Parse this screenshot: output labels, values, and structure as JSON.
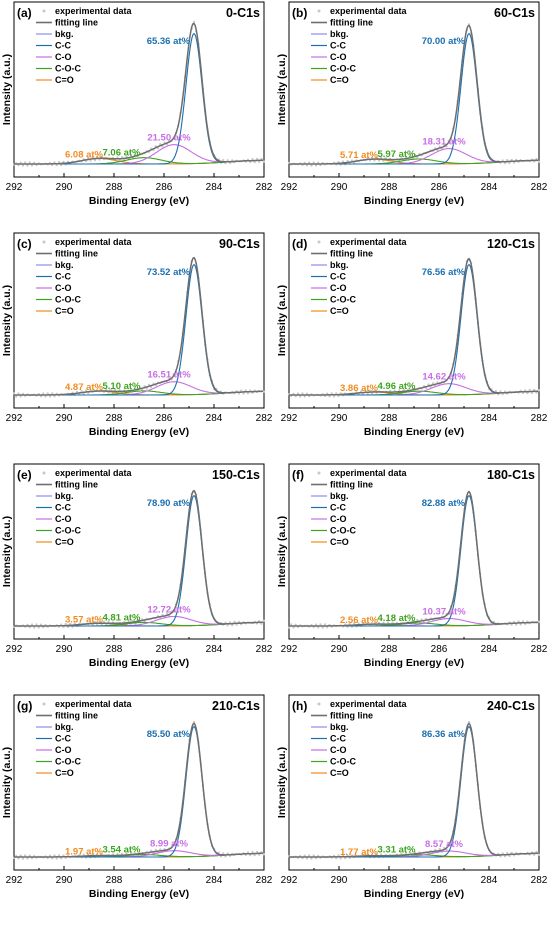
{
  "chart_data": [
    {
      "panel_label": "(a)",
      "title": "0-C1s",
      "type": "line",
      "xlabel": "Binding Energy (eV)",
      "ylabel": "Intensity (a.u.)",
      "xlim": [
        292,
        282
      ],
      "xticks": [
        "292",
        "290",
        "288",
        "286",
        "284",
        "282"
      ],
      "legend": [
        "experimental data",
        "fitting line",
        "bkg.",
        "C-C",
        "C-O",
        "C-O-C",
        "C=O"
      ],
      "peaks": [
        {
          "name": "C-C",
          "position": 284.8,
          "fraction": 65.36,
          "label": "65.36 at%"
        },
        {
          "name": "C-O",
          "position": 285.6,
          "fraction": 21.5,
          "label": "21.50 at%"
        },
        {
          "name": "C-O-C",
          "position": 286.8,
          "fraction": 7.06,
          "label": "7.06 at%"
        },
        {
          "name": "C=O",
          "position": 288.6,
          "fraction": 6.08,
          "label": "6.08 at%"
        }
      ]
    },
    {
      "panel_label": "(b)",
      "title": "60-C1s",
      "type": "line",
      "xlabel": "Binding Energy (eV)",
      "ylabel": "Intensity (a.u.)",
      "xlim": [
        292,
        282
      ],
      "xticks": [
        "292",
        "290",
        "288",
        "286",
        "284",
        "282"
      ],
      "legend": [
        "experimental data",
        "fitting line",
        "bkg.",
        "C-C",
        "C-O",
        "C-O-C",
        "C=O"
      ],
      "peaks": [
        {
          "name": "C-C",
          "position": 284.8,
          "fraction": 70.0,
          "label": "70.00 at%"
        },
        {
          "name": "C-O",
          "position": 285.6,
          "fraction": 18.31,
          "label": "18.31 at%"
        },
        {
          "name": "C-O-C",
          "position": 286.8,
          "fraction": 5.97,
          "label": "5.97 at%"
        },
        {
          "name": "C=O",
          "position": 288.6,
          "fraction": 5.71,
          "label": "5.71 at%"
        }
      ]
    },
    {
      "panel_label": "(c)",
      "title": "90-C1s",
      "type": "line",
      "xlabel": "Binding Energy (eV)",
      "ylabel": "Intensity (a.u.)",
      "xlim": [
        292,
        282
      ],
      "xticks": [
        "292",
        "290",
        "288",
        "286",
        "284",
        "282"
      ],
      "legend": [
        "experimental data",
        "fitting line",
        "bkg.",
        "C-C",
        "C-O",
        "C-O-C",
        "C=O"
      ],
      "peaks": [
        {
          "name": "C-C",
          "position": 284.8,
          "fraction": 73.52,
          "label": "73.52 at%"
        },
        {
          "name": "C-O",
          "position": 285.6,
          "fraction": 16.51,
          "label": "16.51 at%"
        },
        {
          "name": "C-O-C",
          "position": 286.8,
          "fraction": 5.1,
          "label": "5.10 at%"
        },
        {
          "name": "C=O",
          "position": 288.6,
          "fraction": 4.87,
          "label": "4.87 at%"
        }
      ]
    },
    {
      "panel_label": "(d)",
      "title": "120-C1s",
      "type": "line",
      "xlabel": "Binding Energy (eV)",
      "ylabel": "Intensity (a.u.)",
      "xlim": [
        292,
        282
      ],
      "xticks": [
        "292",
        "290",
        "288",
        "286",
        "284",
        "282"
      ],
      "legend": [
        "experimental data",
        "fitting line",
        "bkg.",
        "C-C",
        "C-O",
        "C-O-C",
        "C=O"
      ],
      "peaks": [
        {
          "name": "C-C",
          "position": 284.8,
          "fraction": 76.56,
          "label": "76.56 at%"
        },
        {
          "name": "C-O",
          "position": 285.6,
          "fraction": 14.62,
          "label": "14.62 at%"
        },
        {
          "name": "C-O-C",
          "position": 286.8,
          "fraction": 4.96,
          "label": "4.96 at%"
        },
        {
          "name": "C=O",
          "position": 288.6,
          "fraction": 3.86,
          "label": "3.86 at%"
        }
      ]
    },
    {
      "panel_label": "(e)",
      "title": "150-C1s",
      "type": "line",
      "xlabel": "Binding Energy (eV)",
      "ylabel": "Intensity (a.u.)",
      "xlim": [
        292,
        282
      ],
      "xticks": [
        "292",
        "290",
        "288",
        "286",
        "284",
        "282"
      ],
      "legend": [
        "experimental data",
        "fitting line",
        "bkg.",
        "C-C",
        "C-O",
        "C-O-C",
        "C=O"
      ],
      "peaks": [
        {
          "name": "C-C",
          "position": 284.8,
          "fraction": 78.9,
          "label": "78.90 at%"
        },
        {
          "name": "C-O",
          "position": 285.6,
          "fraction": 12.72,
          "label": "12.72 at%"
        },
        {
          "name": "C-O-C",
          "position": 286.8,
          "fraction": 4.81,
          "label": "4.81 at%"
        },
        {
          "name": "C=O",
          "position": 288.6,
          "fraction": 3.57,
          "label": "3.57 at%"
        }
      ]
    },
    {
      "panel_label": "(f)",
      "title": "180-C1s",
      "type": "line",
      "xlabel": "Binding Energy (eV)",
      "ylabel": "Intensity (a.u.)",
      "xlim": [
        292,
        282
      ],
      "xticks": [
        "292",
        "290",
        "288",
        "286",
        "284",
        "282"
      ],
      "legend": [
        "experimental data",
        "fitting line",
        "bkg.",
        "C-C",
        "C-O",
        "C-O-C",
        "C=O"
      ],
      "peaks": [
        {
          "name": "C-C",
          "position": 284.8,
          "fraction": 82.88,
          "label": "82.88 at%"
        },
        {
          "name": "C-O",
          "position": 285.6,
          "fraction": 10.37,
          "label": "10.37 at%"
        },
        {
          "name": "C-O-C",
          "position": 286.8,
          "fraction": 4.18,
          "label": "4.18 at%"
        },
        {
          "name": "C=O",
          "position": 288.6,
          "fraction": 2.56,
          "label": "2.56 at%"
        }
      ]
    },
    {
      "panel_label": "(g)",
      "title": "210-C1s",
      "type": "line",
      "xlabel": "Binding Energy (eV)",
      "ylabel": "Intensity (a.u.)",
      "xlim": [
        292,
        282
      ],
      "xticks": [
        "292",
        "290",
        "288",
        "286",
        "284",
        "282"
      ],
      "legend": [
        "experimental data",
        "fitting line",
        "bkg.",
        "C-C",
        "C-O",
        "C-O-C",
        "C=O"
      ],
      "peaks": [
        {
          "name": "C-C",
          "position": 284.8,
          "fraction": 85.5,
          "label": "85.50 at%"
        },
        {
          "name": "C-O",
          "position": 285.6,
          "fraction": 8.99,
          "label": "8.99 at%"
        },
        {
          "name": "C-O-C",
          "position": 286.8,
          "fraction": 3.54,
          "label": "3.54 at%"
        },
        {
          "name": "C=O",
          "position": 288.6,
          "fraction": 1.97,
          "label": "1.97 at%"
        }
      ]
    },
    {
      "panel_label": "(h)",
      "title": "240-C1s",
      "type": "line",
      "xlabel": "Binding Energy (eV)",
      "ylabel": "Intensity (a.u.)",
      "xlim": [
        292,
        282
      ],
      "xticks": [
        "292",
        "290",
        "288",
        "286",
        "284",
        "282"
      ],
      "legend": [
        "experimental data",
        "fitting line",
        "bkg.",
        "C-C",
        "C-O",
        "C-O-C",
        "C=O"
      ],
      "peaks": [
        {
          "name": "C-C",
          "position": 284.8,
          "fraction": 86.36,
          "label": "86.36 at%"
        },
        {
          "name": "C-O",
          "position": 285.6,
          "fraction": 8.57,
          "label": "8.57 at%"
        },
        {
          "name": "C-O-C",
          "position": 286.8,
          "fraction": 3.31,
          "label": "3.31 at%"
        },
        {
          "name": "C=O",
          "position": 288.6,
          "fraction": 1.77,
          "label": "1.77 at%"
        }
      ]
    }
  ],
  "colors": {
    "experimental data": "#c8c8c8",
    "fitting line": "#6e6e6e",
    "bkg.": "#8c8cf0",
    "C-C": "#1a6fb0",
    "C-O": "#c86ee6",
    "C-O-C": "#3ca51e",
    "C=O": "#f08c1e"
  }
}
